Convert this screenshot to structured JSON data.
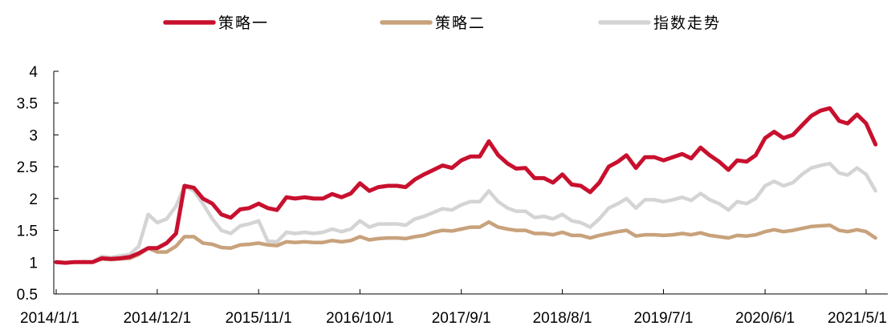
{
  "chart_data": {
    "type": "line",
    "title": "",
    "xlabel": "",
    "ylabel": "",
    "ylim": [
      0.5,
      4
    ],
    "yticks": [
      "0.5",
      "1",
      "1.5",
      "2",
      "2.5",
      "3",
      "3.5",
      "4"
    ],
    "xlim": [
      "2014-01-01",
      "2021-07-01"
    ],
    "xticks": [
      "2014/1/1",
      "2014/12/1",
      "2015/11/1",
      "2016/10/1",
      "2017/9/1",
      "2018/8/1",
      "2019/7/1",
      "2020/6/1",
      "2021/5/1"
    ],
    "grid": false,
    "legend_position": "top",
    "series": [
      {
        "name": "策略一",
        "color": "#c8102e",
        "points": [
          [
            "2014-01-01",
            1.0
          ],
          [
            "2014-02-01",
            0.99
          ],
          [
            "2014-03-01",
            1.0
          ],
          [
            "2014-04-01",
            1.0
          ],
          [
            "2014-05-01",
            1.0
          ],
          [
            "2014-06-01",
            1.06
          ],
          [
            "2014-07-01",
            1.05
          ],
          [
            "2014-08-01",
            1.06
          ],
          [
            "2014-09-01",
            1.08
          ],
          [
            "2014-10-01",
            1.14
          ],
          [
            "2014-11-01",
            1.22
          ],
          [
            "2014-12-01",
            1.22
          ],
          [
            "2015-01-01",
            1.3
          ],
          [
            "2015-02-01",
            1.45
          ],
          [
            "2015-03-01",
            2.2
          ],
          [
            "2015-04-01",
            2.17
          ],
          [
            "2015-05-01",
            2.0
          ],
          [
            "2015-06-01",
            1.92
          ],
          [
            "2015-07-01",
            1.75
          ],
          [
            "2015-08-01",
            1.7
          ],
          [
            "2015-09-01",
            1.83
          ],
          [
            "2015-10-01",
            1.85
          ],
          [
            "2015-11-01",
            1.92
          ],
          [
            "2015-12-01",
            1.85
          ],
          [
            "2016-01-01",
            1.82
          ],
          [
            "2016-02-01",
            2.02
          ],
          [
            "2016-03-01",
            2.0
          ],
          [
            "2016-04-01",
            2.02
          ],
          [
            "2016-05-01",
            2.0
          ],
          [
            "2016-06-01",
            2.0
          ],
          [
            "2016-07-01",
            2.07
          ],
          [
            "2016-08-01",
            2.02
          ],
          [
            "2016-09-01",
            2.08
          ],
          [
            "2016-10-01",
            2.24
          ],
          [
            "2016-11-01",
            2.12
          ],
          [
            "2016-12-01",
            2.18
          ],
          [
            "2017-01-01",
            2.2
          ],
          [
            "2017-02-01",
            2.2
          ],
          [
            "2017-03-01",
            2.18
          ],
          [
            "2017-04-01",
            2.3
          ],
          [
            "2017-05-01",
            2.38
          ],
          [
            "2017-06-01",
            2.45
          ],
          [
            "2017-07-01",
            2.52
          ],
          [
            "2017-08-01",
            2.48
          ],
          [
            "2017-09-01",
            2.6
          ],
          [
            "2017-10-01",
            2.66
          ],
          [
            "2017-11-01",
            2.66
          ],
          [
            "2017-12-01",
            2.9
          ],
          [
            "2018-01-01",
            2.68
          ],
          [
            "2018-02-01",
            2.55
          ],
          [
            "2018-03-01",
            2.47
          ],
          [
            "2018-04-01",
            2.48
          ],
          [
            "2018-05-01",
            2.32
          ],
          [
            "2018-06-01",
            2.32
          ],
          [
            "2018-07-01",
            2.25
          ],
          [
            "2018-08-01",
            2.38
          ],
          [
            "2018-09-01",
            2.22
          ],
          [
            "2018-10-01",
            2.2
          ],
          [
            "2018-11-01",
            2.1
          ],
          [
            "2018-12-01",
            2.25
          ],
          [
            "2019-01-01",
            2.5
          ],
          [
            "2019-02-01",
            2.58
          ],
          [
            "2019-03-01",
            2.68
          ],
          [
            "2019-04-01",
            2.48
          ],
          [
            "2019-05-01",
            2.65
          ],
          [
            "2019-06-01",
            2.65
          ],
          [
            "2019-07-01",
            2.6
          ],
          [
            "2019-08-01",
            2.65
          ],
          [
            "2019-09-01",
            2.7
          ],
          [
            "2019-10-01",
            2.63
          ],
          [
            "2019-11-01",
            2.8
          ],
          [
            "2019-12-01",
            2.68
          ],
          [
            "2020-01-01",
            2.58
          ],
          [
            "2020-02-01",
            2.45
          ],
          [
            "2020-03-01",
            2.6
          ],
          [
            "2020-04-01",
            2.58
          ],
          [
            "2020-05-01",
            2.68
          ],
          [
            "2020-06-01",
            2.95
          ],
          [
            "2020-07-01",
            3.05
          ],
          [
            "2020-08-01",
            2.95
          ],
          [
            "2020-09-01",
            3.0
          ],
          [
            "2020-10-01",
            3.15
          ],
          [
            "2020-11-01",
            3.3
          ],
          [
            "2020-12-01",
            3.38
          ],
          [
            "2021-01-01",
            3.42
          ],
          [
            "2021-02-01",
            3.22
          ],
          [
            "2021-03-01",
            3.18
          ],
          [
            "2021-04-01",
            3.32
          ],
          [
            "2021-05-01",
            3.18
          ],
          [
            "2021-06-01",
            2.85
          ]
        ]
      },
      {
        "name": "策略二",
        "color": "#c8a27c",
        "points": [
          [
            "2014-01-01",
            1.0
          ],
          [
            "2014-02-01",
            0.99
          ],
          [
            "2014-03-01",
            1.0
          ],
          [
            "2014-04-01",
            1.0
          ],
          [
            "2014-05-01",
            1.0
          ],
          [
            "2014-06-01",
            1.05
          ],
          [
            "2014-07-01",
            1.04
          ],
          [
            "2014-08-01",
            1.05
          ],
          [
            "2014-09-01",
            1.06
          ],
          [
            "2014-10-01",
            1.12
          ],
          [
            "2014-11-01",
            1.22
          ],
          [
            "2014-12-01",
            1.16
          ],
          [
            "2015-01-01",
            1.16
          ],
          [
            "2015-02-01",
            1.25
          ],
          [
            "2015-03-01",
            1.4
          ],
          [
            "2015-04-01",
            1.4
          ],
          [
            "2015-05-01",
            1.3
          ],
          [
            "2015-06-01",
            1.28
          ],
          [
            "2015-07-01",
            1.23
          ],
          [
            "2015-08-01",
            1.22
          ],
          [
            "2015-09-01",
            1.27
          ],
          [
            "2015-10-01",
            1.28
          ],
          [
            "2015-11-01",
            1.3
          ],
          [
            "2015-12-01",
            1.27
          ],
          [
            "2016-01-01",
            1.26
          ],
          [
            "2016-02-01",
            1.32
          ],
          [
            "2016-03-01",
            1.31
          ],
          [
            "2016-04-01",
            1.32
          ],
          [
            "2016-05-01",
            1.31
          ],
          [
            "2016-06-01",
            1.31
          ],
          [
            "2016-07-01",
            1.34
          ],
          [
            "2016-08-01",
            1.32
          ],
          [
            "2016-09-01",
            1.34
          ],
          [
            "2016-10-01",
            1.4
          ],
          [
            "2016-11-01",
            1.35
          ],
          [
            "2016-12-01",
            1.37
          ],
          [
            "2017-01-01",
            1.38
          ],
          [
            "2017-02-01",
            1.38
          ],
          [
            "2017-03-01",
            1.37
          ],
          [
            "2017-04-01",
            1.4
          ],
          [
            "2017-05-01",
            1.42
          ],
          [
            "2017-06-01",
            1.47
          ],
          [
            "2017-07-01",
            1.5
          ],
          [
            "2017-08-01",
            1.49
          ],
          [
            "2017-09-01",
            1.52
          ],
          [
            "2017-10-01",
            1.55
          ],
          [
            "2017-11-01",
            1.55
          ],
          [
            "2017-12-01",
            1.63
          ],
          [
            "2018-01-01",
            1.55
          ],
          [
            "2018-02-01",
            1.52
          ],
          [
            "2018-03-01",
            1.5
          ],
          [
            "2018-04-01",
            1.5
          ],
          [
            "2018-05-01",
            1.45
          ],
          [
            "2018-06-01",
            1.45
          ],
          [
            "2018-07-01",
            1.43
          ],
          [
            "2018-08-01",
            1.47
          ],
          [
            "2018-09-01",
            1.42
          ],
          [
            "2018-10-01",
            1.42
          ],
          [
            "2018-11-01",
            1.38
          ],
          [
            "2018-12-01",
            1.42
          ],
          [
            "2019-01-01",
            1.45
          ],
          [
            "2019-02-01",
            1.48
          ],
          [
            "2019-03-01",
            1.5
          ],
          [
            "2019-04-01",
            1.41
          ],
          [
            "2019-05-01",
            1.43
          ],
          [
            "2019-06-01",
            1.43
          ],
          [
            "2019-07-01",
            1.42
          ],
          [
            "2019-08-01",
            1.43
          ],
          [
            "2019-09-01",
            1.45
          ],
          [
            "2019-10-01",
            1.43
          ],
          [
            "2019-11-01",
            1.46
          ],
          [
            "2019-12-01",
            1.42
          ],
          [
            "2020-01-01",
            1.4
          ],
          [
            "2020-02-01",
            1.38
          ],
          [
            "2020-03-01",
            1.42
          ],
          [
            "2020-04-01",
            1.41
          ],
          [
            "2020-05-01",
            1.43
          ],
          [
            "2020-06-01",
            1.48
          ],
          [
            "2020-07-01",
            1.51
          ],
          [
            "2020-08-01",
            1.48
          ],
          [
            "2020-09-01",
            1.5
          ],
          [
            "2020-10-01",
            1.53
          ],
          [
            "2020-11-01",
            1.56
          ],
          [
            "2020-12-01",
            1.57
          ],
          [
            "2021-01-01",
            1.58
          ],
          [
            "2021-02-01",
            1.5
          ],
          [
            "2021-03-01",
            1.48
          ],
          [
            "2021-04-01",
            1.51
          ],
          [
            "2021-05-01",
            1.48
          ],
          [
            "2021-06-01",
            1.38
          ]
        ]
      },
      {
        "name": "指数走势",
        "color": "#d4d4d4",
        "points": [
          [
            "2014-01-01",
            1.0
          ],
          [
            "2014-02-01",
            0.99
          ],
          [
            "2014-03-01",
            1.0
          ],
          [
            "2014-04-01",
            1.01
          ],
          [
            "2014-05-01",
            1.0
          ],
          [
            "2014-06-01",
            1.09
          ],
          [
            "2014-07-01",
            1.07
          ],
          [
            "2014-08-01",
            1.1
          ],
          [
            "2014-09-01",
            1.12
          ],
          [
            "2014-10-01",
            1.25
          ],
          [
            "2014-11-01",
            1.75
          ],
          [
            "2014-12-01",
            1.62
          ],
          [
            "2015-01-01",
            1.68
          ],
          [
            "2015-02-01",
            1.88
          ],
          [
            "2015-03-01",
            2.2
          ],
          [
            "2015-04-01",
            2.12
          ],
          [
            "2015-05-01",
            1.92
          ],
          [
            "2015-06-01",
            1.68
          ],
          [
            "2015-07-01",
            1.5
          ],
          [
            "2015-08-01",
            1.45
          ],
          [
            "2015-09-01",
            1.57
          ],
          [
            "2015-10-01",
            1.6
          ],
          [
            "2015-11-01",
            1.65
          ],
          [
            "2015-12-01",
            1.33
          ],
          [
            "2016-01-01",
            1.32
          ],
          [
            "2016-02-01",
            1.47
          ],
          [
            "2016-03-01",
            1.45
          ],
          [
            "2016-04-01",
            1.47
          ],
          [
            "2016-05-01",
            1.45
          ],
          [
            "2016-06-01",
            1.47
          ],
          [
            "2016-07-01",
            1.52
          ],
          [
            "2016-08-01",
            1.48
          ],
          [
            "2016-09-01",
            1.52
          ],
          [
            "2016-10-01",
            1.65
          ],
          [
            "2016-11-01",
            1.55
          ],
          [
            "2016-12-01",
            1.6
          ],
          [
            "2017-01-01",
            1.6
          ],
          [
            "2017-02-01",
            1.6
          ],
          [
            "2017-03-01",
            1.58
          ],
          [
            "2017-04-01",
            1.68
          ],
          [
            "2017-05-01",
            1.72
          ],
          [
            "2017-06-01",
            1.78
          ],
          [
            "2017-07-01",
            1.84
          ],
          [
            "2017-08-01",
            1.82
          ],
          [
            "2017-09-01",
            1.9
          ],
          [
            "2017-10-01",
            1.95
          ],
          [
            "2017-11-01",
            1.95
          ],
          [
            "2017-12-01",
            2.12
          ],
          [
            "2018-01-01",
            1.95
          ],
          [
            "2018-02-01",
            1.85
          ],
          [
            "2018-03-01",
            1.8
          ],
          [
            "2018-04-01",
            1.8
          ],
          [
            "2018-05-01",
            1.7
          ],
          [
            "2018-06-01",
            1.72
          ],
          [
            "2018-07-01",
            1.68
          ],
          [
            "2018-08-01",
            1.75
          ],
          [
            "2018-09-01",
            1.65
          ],
          [
            "2018-10-01",
            1.62
          ],
          [
            "2018-11-01",
            1.55
          ],
          [
            "2018-12-01",
            1.68
          ],
          [
            "2019-01-01",
            1.85
          ],
          [
            "2019-02-01",
            1.92
          ],
          [
            "2019-03-01",
            2.0
          ],
          [
            "2019-04-01",
            1.85
          ],
          [
            "2019-05-01",
            1.98
          ],
          [
            "2019-06-01",
            1.98
          ],
          [
            "2019-07-01",
            1.95
          ],
          [
            "2019-08-01",
            1.98
          ],
          [
            "2019-09-01",
            2.02
          ],
          [
            "2019-10-01",
            1.97
          ],
          [
            "2019-11-01",
            2.08
          ],
          [
            "2019-12-01",
            1.98
          ],
          [
            "2020-01-01",
            1.92
          ],
          [
            "2020-02-01",
            1.82
          ],
          [
            "2020-03-01",
            1.95
          ],
          [
            "2020-04-01",
            1.92
          ],
          [
            "2020-05-01",
            2.0
          ],
          [
            "2020-06-01",
            2.2
          ],
          [
            "2020-07-01",
            2.27
          ],
          [
            "2020-08-01",
            2.2
          ],
          [
            "2020-09-01",
            2.25
          ],
          [
            "2020-10-01",
            2.38
          ],
          [
            "2020-11-01",
            2.48
          ],
          [
            "2020-12-01",
            2.52
          ],
          [
            "2021-01-01",
            2.55
          ],
          [
            "2021-02-01",
            2.4
          ],
          [
            "2021-03-01",
            2.37
          ],
          [
            "2021-04-01",
            2.48
          ],
          [
            "2021-05-01",
            2.38
          ],
          [
            "2021-06-01",
            2.12
          ]
        ]
      }
    ]
  }
}
